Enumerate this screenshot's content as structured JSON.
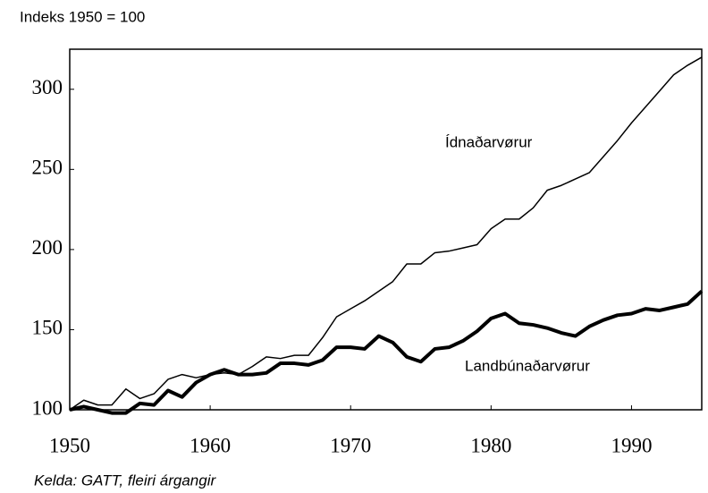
{
  "chart_data": {
    "type": "line",
    "subtitle": "Indeks 1950 = 100",
    "source": "Kelda: GATT, fleiri árgangir",
    "x": [
      1950,
      1951,
      1952,
      1953,
      1954,
      1955,
      1956,
      1957,
      1958,
      1959,
      1960,
      1961,
      1962,
      1963,
      1964,
      1965,
      1966,
      1967,
      1968,
      1969,
      1970,
      1971,
      1972,
      1973,
      1974,
      1975,
      1976,
      1977,
      1978,
      1979,
      1980,
      1981,
      1982,
      1983,
      1984,
      1985,
      1986,
      1987,
      1988,
      1989,
      1990,
      1991,
      1992,
      1993,
      1994,
      1995
    ],
    "series": [
      {
        "name": "Ídnaðarvørur",
        "color": "#000000",
        "width": 1.5,
        "values": [
          100,
          106,
          103,
          103,
          113,
          107,
          110,
          119,
          122,
          120,
          122,
          123,
          122,
          127,
          133,
          132,
          134,
          134,
          145,
          158,
          163,
          168,
          174,
          180,
          191,
          191,
          198,
          199,
          201,
          203,
          213,
          219,
          219,
          226,
          237,
          240,
          244,
          248,
          258,
          268,
          279,
          289,
          299,
          309,
          315,
          320
        ]
      },
      {
        "name": "Landbúnaðarvørur",
        "color": "#000000",
        "width": 4,
        "values": [
          100,
          102,
          100,
          98,
          98,
          104,
          103,
          112,
          108,
          117,
          122,
          125,
          122,
          122,
          123,
          129,
          129,
          128,
          131,
          139,
          139,
          138,
          146,
          142,
          133,
          130,
          138,
          139,
          143,
          149,
          157,
          160,
          154,
          153,
          151,
          148,
          146,
          152,
          156,
          159,
          160,
          163,
          162,
          164,
          166,
          174
        ]
      }
    ],
    "xlim": [
      1950,
      1995
    ],
    "xticks": [
      1950,
      1960,
      1970,
      1980,
      1990
    ],
    "ylim": [
      100,
      325
    ],
    "yticks": [
      100,
      150,
      200,
      250,
      300
    ]
  }
}
